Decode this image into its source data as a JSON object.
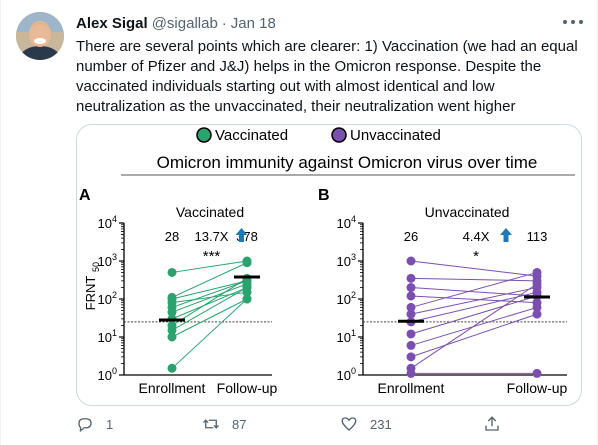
{
  "tweet": {
    "author_name": "Alex Sigal",
    "author_handle": "@sigallab",
    "separator": "·",
    "date": "Jan 18",
    "text": "There are several points which are clearer: 1) Vaccination (we had an equal number of Pfizer and J&J) helps in the Omicron response. Despite the vaccinated individuals starting out with almost identical and low neutralization as the unvaccinated, their neutralization went higher"
  },
  "figure": {
    "legend": [
      "Vaccinated",
      "Unvaccinated"
    ],
    "colors": {
      "vaccinated": "#2aa36e",
      "unvaccinated": "#7b4fb0",
      "median": "#000000",
      "arrow": "#1f77b4"
    },
    "title": "Omicron immunity against Omicron virus over time",
    "y_axis_label_main": "FRNT",
    "y_axis_label_sub": "50"
  },
  "chart_data": [
    {
      "type": "scatter",
      "panel": "A",
      "title": "Vaccinated",
      "categories": [
        "Enrollment",
        "Follow-up"
      ],
      "y_scale": "log",
      "ylim": [
        1,
        10000
      ],
      "y_ticks": [
        "10^0",
        "10^1",
        "10^2",
        "10^3",
        "10^4"
      ],
      "counts": [
        "28",
        "378"
      ],
      "fold_change": "13.7X",
      "significance": "***",
      "medians": [
        28,
        378
      ],
      "pairs": [
        [
          500,
          1000
        ],
        [
          110,
          900
        ],
        [
          100,
          300
        ],
        [
          80,
          150
        ],
        [
          60,
          300
        ],
        [
          45,
          250
        ],
        [
          30,
          200
        ],
        [
          20,
          350
        ],
        [
          15,
          200
        ],
        [
          10,
          100
        ],
        [
          1.5,
          100
        ]
      ],
      "color": "#2aa36e"
    },
    {
      "type": "scatter",
      "panel": "B",
      "title": "Unvaccinated",
      "categories": [
        "Enrollment",
        "Follow-up"
      ],
      "y_scale": "log",
      "ylim": [
        1,
        10000
      ],
      "y_ticks": [
        "10^0",
        "10^1",
        "10^2",
        "10^3",
        "10^4"
      ],
      "counts": [
        "26",
        "113"
      ],
      "fold_change": "4.4X",
      "significance": "*",
      "medians": [
        26,
        113
      ],
      "pairs": [
        [
          1000,
          400
        ],
        [
          350,
          300
        ],
        [
          200,
          120
        ],
        [
          120,
          80
        ],
        [
          60,
          500
        ],
        [
          40,
          200
        ],
        [
          25,
          150
        ],
        [
          12,
          120
        ],
        [
          6,
          60
        ],
        [
          3,
          40
        ],
        [
          1.5,
          250
        ],
        [
          1.1,
          1.1
        ]
      ],
      "color": "#7b4fb0"
    }
  ],
  "actions": {
    "reply_count": "1",
    "retweet_count": "87",
    "like_count": "231"
  },
  "icons": [
    "avatar",
    "more-icon",
    "reply-icon",
    "retweet-icon",
    "like-icon",
    "share-icon",
    "up-arrow-icon"
  ]
}
